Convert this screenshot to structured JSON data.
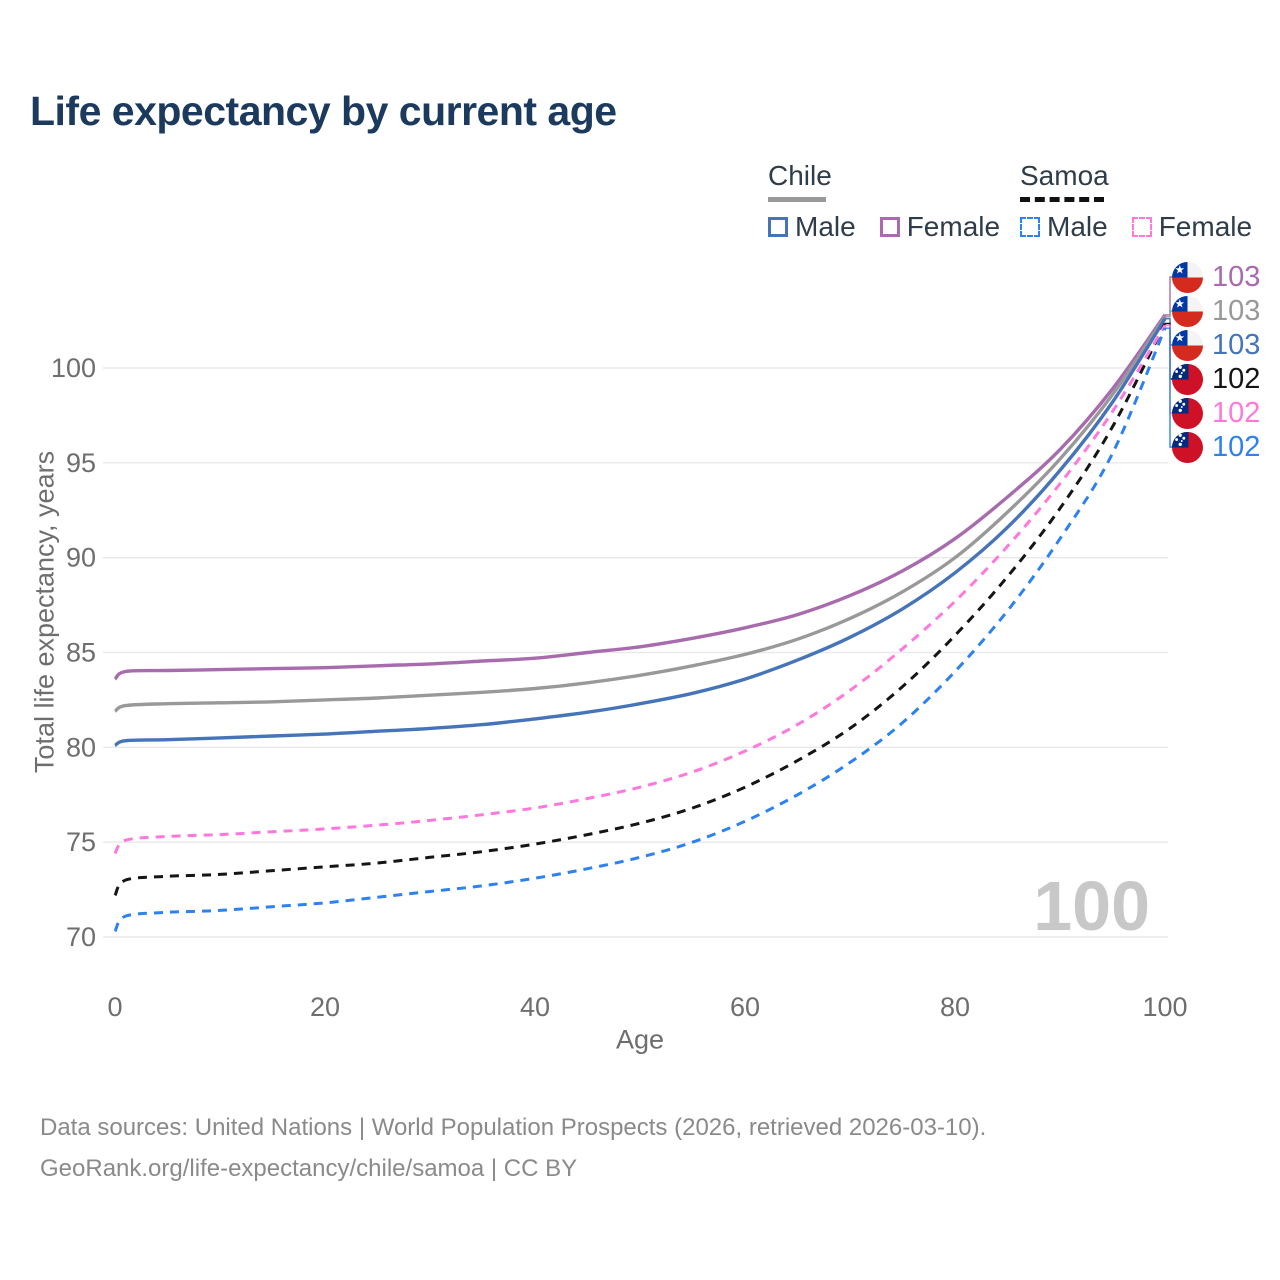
{
  "title": "Life expectancy by current age",
  "legend": {
    "groups": [
      {
        "label": "Chile",
        "line_style": "solid",
        "underline_color": "#999999",
        "items": [
          {
            "label": "Male",
            "color": "#4674b9"
          },
          {
            "label": "Female",
            "color": "#a86bad"
          }
        ]
      },
      {
        "label": "Samoa",
        "line_style": "dashed",
        "underline_color": "#111111",
        "items": [
          {
            "label": "Male",
            "color": "#2e82f0"
          },
          {
            "label": "Female",
            "color": "#ff78dc"
          }
        ]
      }
    ]
  },
  "chart_data": {
    "type": "line",
    "title": "Life expectancy by current age",
    "xlabel": "Age",
    "ylabel": "Total life expectancy, years",
    "xlim": [
      0,
      100
    ],
    "ylim": [
      70,
      103.5
    ],
    "x_ticks": [
      0,
      20,
      40,
      60,
      80,
      100
    ],
    "y_ticks": [
      70,
      75,
      80,
      85,
      90,
      95,
      100
    ],
    "grid": "horizontal",
    "legend_position": "top-right",
    "watermark": "100",
    "x": [
      0,
      1,
      5,
      10,
      15,
      20,
      25,
      30,
      35,
      40,
      45,
      50,
      55,
      60,
      65,
      70,
      75,
      80,
      85,
      90,
      95,
      100
    ],
    "series": [
      {
        "name": "Chile Female",
        "country": "Chile",
        "sex": "Female",
        "color": "#a86bad",
        "dash": false,
        "flag_ref": "#flag-chile",
        "end_label": "103",
        "values": [
          83.6,
          84.0,
          84.05,
          84.1,
          84.15,
          84.2,
          84.3,
          84.4,
          84.55,
          84.7,
          85.0,
          85.3,
          85.75,
          86.3,
          87.0,
          88.0,
          89.3,
          91.0,
          93.2,
          95.7,
          98.9,
          102.8
        ]
      },
      {
        "name": "Chile Both sexes",
        "country": "Chile",
        "sex": "Both",
        "color": "#999999",
        "dash": false,
        "flag_ref": "#flag-chile",
        "end_label": "103",
        "values": [
          81.9,
          82.2,
          82.3,
          82.35,
          82.4,
          82.5,
          82.6,
          82.75,
          82.9,
          83.1,
          83.4,
          83.8,
          84.3,
          84.9,
          85.7,
          86.8,
          88.2,
          90.0,
          92.4,
          95.2,
          98.6,
          102.7
        ]
      },
      {
        "name": "Chile Male",
        "country": "Chile",
        "sex": "Male",
        "color": "#4674b9",
        "dash": false,
        "flag_ref": "#flag-chile",
        "end_label": "103",
        "values": [
          80.1,
          80.35,
          80.4,
          80.5,
          80.6,
          80.7,
          80.85,
          81.0,
          81.2,
          81.5,
          81.85,
          82.3,
          82.85,
          83.6,
          84.6,
          85.8,
          87.3,
          89.2,
          91.6,
          94.6,
          98.2,
          102.6
        ]
      },
      {
        "name": "Samoa Both sexes",
        "country": "Samoa",
        "sex": "Both",
        "color": "#151515",
        "dash": true,
        "flag_ref": "#flag-samoa",
        "end_label": "102",
        "values": [
          72.2,
          73.0,
          73.2,
          73.3,
          73.5,
          73.7,
          73.9,
          74.2,
          74.5,
          74.9,
          75.4,
          76.0,
          76.8,
          77.9,
          79.3,
          81.0,
          83.2,
          85.9,
          89.0,
          92.6,
          96.9,
          102.35
        ]
      },
      {
        "name": "Samoa Female",
        "country": "Samoa",
        "sex": "Female",
        "color": "#ff78dc",
        "dash": true,
        "flag_ref": "#flag-samoa",
        "end_label": "102",
        "values": [
          74.4,
          75.1,
          75.3,
          75.4,
          75.55,
          75.7,
          75.9,
          76.15,
          76.45,
          76.8,
          77.3,
          77.9,
          78.7,
          79.8,
          81.2,
          83.0,
          85.2,
          87.7,
          90.6,
          93.9,
          97.7,
          102.25
        ]
      },
      {
        "name": "Samoa Male",
        "country": "Samoa",
        "sex": "Male",
        "color": "#2e82f0",
        "dash": true,
        "flag_ref": "#flag-samoa",
        "end_label": "102",
        "values": [
          70.3,
          71.1,
          71.3,
          71.4,
          71.6,
          71.8,
          72.1,
          72.4,
          72.7,
          73.1,
          73.6,
          74.2,
          75.0,
          76.1,
          77.5,
          79.2,
          81.3,
          84.0,
          87.2,
          91.0,
          95.5,
          102.1
        ]
      }
    ]
  },
  "footer": {
    "line1": "Data sources: United Nations | World Population Prospects (2026, retrieved 2026-03-10).",
    "line2": "GeoRank.org/life-expectancy/chile/samoa | CC BY"
  }
}
